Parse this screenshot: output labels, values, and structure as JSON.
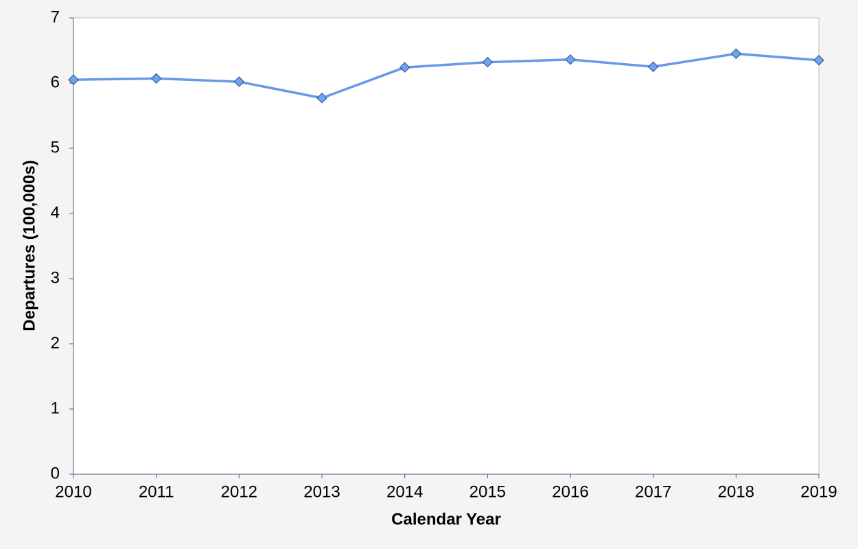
{
  "chart_data": {
    "type": "line",
    "x_label": "Calendar Year",
    "y_label": "Departures (100,000s)",
    "x": [
      2010,
      2011,
      2012,
      2013,
      2014,
      2015,
      2016,
      2017,
      2018,
      2019
    ],
    "values": [
      6.05,
      6.07,
      6.02,
      5.77,
      6.24,
      6.32,
      6.36,
      6.25,
      6.45,
      6.35
    ],
    "color": "#6699e8",
    "marker": "diamond",
    "marker_color": "#6fa3ef",
    "xlim": [
      2010,
      2019
    ],
    "xticks": [
      2010,
      2011,
      2012,
      2013,
      2014,
      2015,
      2016,
      2017,
      2018,
      2019
    ],
    "ylim": [
      0,
      7
    ],
    "yticks": [
      0,
      1,
      2,
      3,
      4,
      5,
      6,
      7
    ],
    "grid": false
  }
}
